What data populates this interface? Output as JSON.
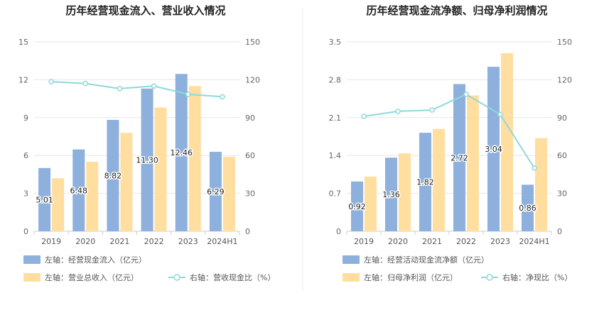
{
  "chart_data": [
    {
      "type": "bar",
      "title": "历年经营现金流入、营业收入情况",
      "categories": [
        "2019",
        "2020",
        "2021",
        "2022",
        "2023",
        "2024H1"
      ],
      "left_axis": {
        "ylim": [
          0,
          15
        ],
        "ticks": [
          "0",
          "3",
          "6",
          "9",
          "12",
          "15"
        ]
      },
      "right_axis": {
        "ylim": [
          0,
          150
        ],
        "ticks": [
          "0",
          "30",
          "60",
          "90",
          "120",
          "150"
        ]
      },
      "grid": true,
      "series": [
        {
          "name": "左轴：经营现金流入（亿元）",
          "kind": "bar",
          "axis": "left",
          "color": "#8eb0dd",
          "values": [
            5.01,
            6.48,
            8.82,
            11.3,
            12.46,
            6.29
          ],
          "labels": [
            "5.01",
            "6.48",
            "8.82",
            "11.30",
            "12.46",
            "6.29"
          ]
        },
        {
          "name": "左轴：营业总收入（亿元）",
          "kind": "bar",
          "axis": "left",
          "color": "#ffdea0",
          "values": [
            4.2,
            5.5,
            7.8,
            9.8,
            11.5,
            5.9
          ]
        },
        {
          "name": "右轴：营收现金比（%）",
          "kind": "line",
          "axis": "right",
          "color": "#8ed8dc",
          "values": [
            118.5,
            117,
            113,
            115,
            108.5,
            106.5
          ]
        }
      ],
      "legend_position": "bottom-left"
    },
    {
      "type": "bar",
      "title": "历年经营现金流净额、归母净利润情况",
      "categories": [
        "2019",
        "2020",
        "2021",
        "2022",
        "2023",
        "2024H1"
      ],
      "left_axis": {
        "ylim": [
          0,
          3.5
        ],
        "ticks": [
          "0",
          "0.7",
          "1.4",
          "2.1",
          "2.8",
          "3.5"
        ]
      },
      "right_axis": {
        "ylim": [
          0,
          150
        ],
        "ticks": [
          "0",
          "30",
          "60",
          "90",
          "120",
          "150"
        ]
      },
      "grid": true,
      "series": [
        {
          "name": "左轴：经营活动现金流净额（亿元）",
          "kind": "bar",
          "axis": "left",
          "color": "#8eb0dd",
          "values": [
            0.92,
            1.36,
            1.82,
            2.72,
            3.04,
            0.86
          ],
          "labels": [
            "0.92",
            "1.36",
            "1.82",
            "2.72",
            "3.04",
            "0.86"
          ]
        },
        {
          "name": "左轴：归母净利润（亿元）",
          "kind": "bar",
          "axis": "left",
          "color": "#ffdea0",
          "values": [
            1.01,
            1.44,
            1.89,
            2.51,
            3.29,
            1.72
          ]
        },
        {
          "name": "右轴：净现比（%）",
          "kind": "line",
          "axis": "right",
          "color": "#8ed8dc",
          "values": [
            91,
            95,
            96,
            108.5,
            92.5,
            50
          ]
        }
      ],
      "legend_position": "bottom-left"
    }
  ]
}
